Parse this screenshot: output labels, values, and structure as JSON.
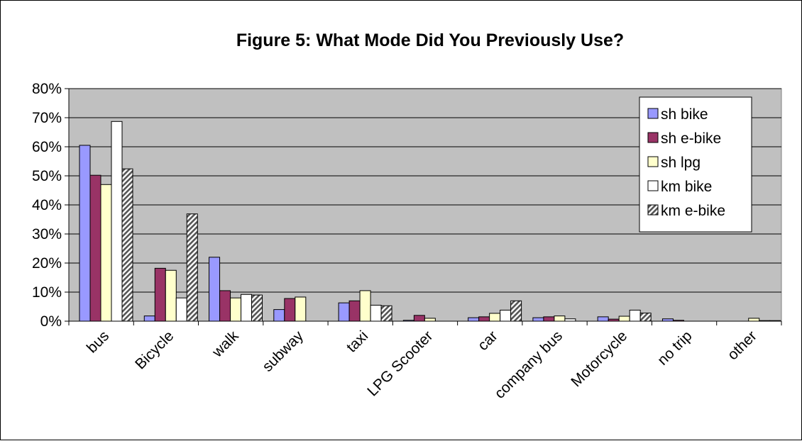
{
  "chart_data": {
    "type": "bar",
    "title": "Figure 5: What Mode Did You Previously Use?",
    "xlabel": "",
    "ylabel": "",
    "ylim": [
      0,
      80
    ],
    "y_ticks": [
      "0%",
      "10%",
      "20%",
      "30%",
      "40%",
      "50%",
      "60%",
      "70%",
      "80%"
    ],
    "grid": true,
    "legend_position": "top-right",
    "categories": [
      "bus",
      "Bicycle",
      "walk",
      "subway",
      "taxi",
      "LPG Scooter",
      "car",
      "company bus",
      "Motorcycle",
      "no trip",
      "other"
    ],
    "series": [
      {
        "name": "sh bike",
        "color": "#9999ff",
        "pattern": "solid",
        "values": [
          60.5,
          1.8,
          22.0,
          4.0,
          6.3,
          0.3,
          1.2,
          1.2,
          1.5,
          0.8,
          0.0
        ]
      },
      {
        "name": "sh e-bike",
        "color": "#993366",
        "pattern": "solid",
        "values": [
          50.2,
          18.2,
          10.5,
          7.8,
          7.0,
          2.0,
          1.5,
          1.5,
          0.7,
          0.3,
          0.0
        ]
      },
      {
        "name": "sh lpg",
        "color": "#ffffcc",
        "pattern": "solid",
        "values": [
          47.0,
          17.5,
          8.0,
          8.3,
          10.5,
          1.0,
          2.7,
          1.8,
          1.7,
          0.0,
          1.0
        ]
      },
      {
        "name": "km bike",
        "color": "#ffffff",
        "pattern": "solid",
        "values": [
          68.7,
          8.0,
          9.2,
          0.0,
          5.5,
          0.0,
          3.8,
          0.8,
          3.8,
          0.0,
          0.2
        ]
      },
      {
        "name": "km e-bike",
        "color": "#bbbbbb",
        "pattern": "hatch",
        "values": [
          52.4,
          36.9,
          9.0,
          0.0,
          5.3,
          0.0,
          7.0,
          0.0,
          2.8,
          0.0,
          0.2
        ]
      }
    ],
    "plot_background": "#c0c0c0"
  }
}
